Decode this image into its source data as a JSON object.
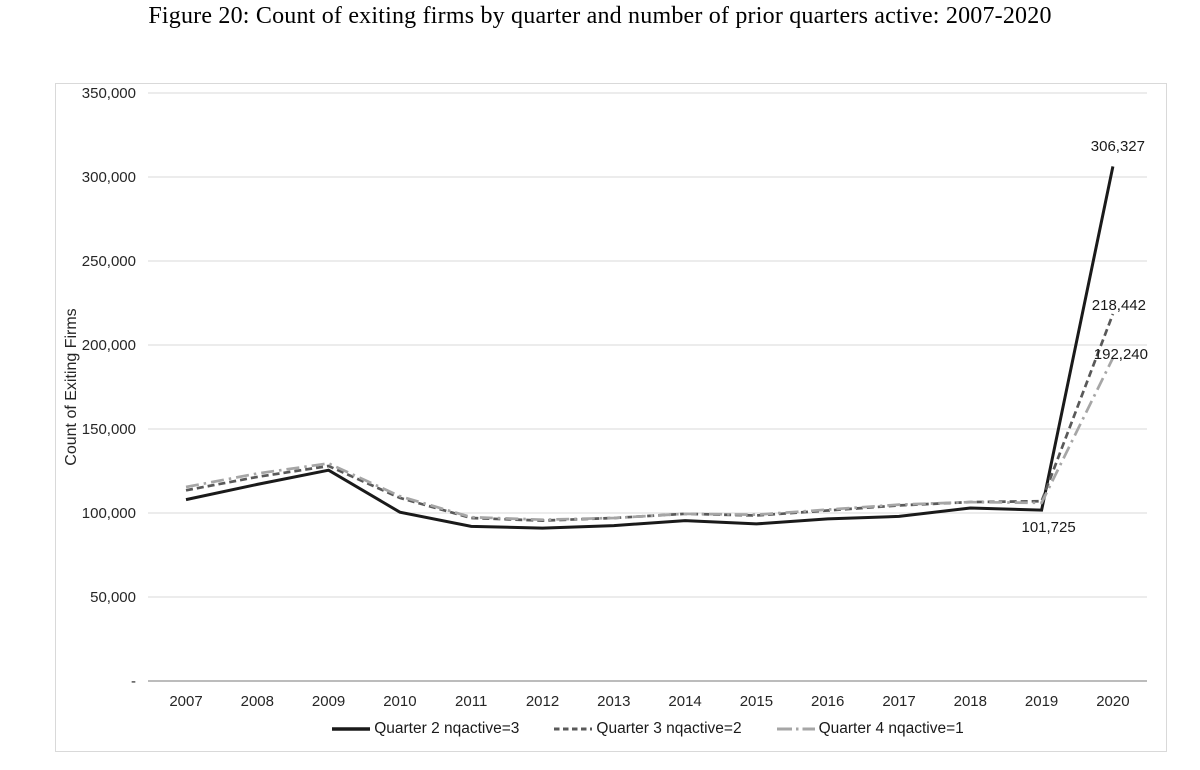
{
  "chart_data": {
    "type": "line",
    "title": "Figure 20: Count of exiting firms by quarter and number of prior quarters active: 2007-2020",
    "ylabel": "Count of Exiting Firms",
    "xlabel": "",
    "categories": [
      "2007",
      "2008",
      "2009",
      "2010",
      "2011",
      "2012",
      "2013",
      "2014",
      "2015",
      "2016",
      "2017",
      "2018",
      "2019",
      "2020"
    ],
    "ylim": [
      0,
      350000
    ],
    "ytick_interval": 50000,
    "yticks": [
      {
        "value": 0,
        "label": "-"
      },
      {
        "value": 50000,
        "label": "50,000"
      },
      {
        "value": 100000,
        "label": "100,000"
      },
      {
        "value": 150000,
        "label": "150,000"
      },
      {
        "value": 200000,
        "label": "200,000"
      },
      {
        "value": 250000,
        "label": "250,000"
      },
      {
        "value": 300000,
        "label": "300,000"
      },
      {
        "value": 350000,
        "label": "350,000"
      }
    ],
    "grid": "horizontal",
    "legend_position": "bottom",
    "series": [
      {
        "name": "Quarter 2 nqactive=3",
        "line_style": "solid",
        "color": "#1a1a1a",
        "values": [
          108000,
          117000,
          125500,
          100500,
          92000,
          91000,
          92500,
          95500,
          93500,
          96500,
          98000,
          103000,
          101725,
          306327
        ]
      },
      {
        "name": "Quarter 3 nqactive=2",
        "line_style": "dashed",
        "color": "#595959",
        "values": [
          113500,
          121500,
          128000,
          109000,
          97000,
          95500,
          97000,
          99500,
          98500,
          101500,
          104500,
          106500,
          107000,
          218442
        ]
      },
      {
        "name": "Quarter 4 nqactive=1",
        "line_style": "dash-dot",
        "color": "#a6a6a6",
        "values": [
          115500,
          123500,
          129500,
          110000,
          97500,
          96000,
          97000,
          99500,
          99000,
          102000,
          105000,
          106500,
          106000,
          192240
        ]
      }
    ],
    "annotations": [
      {
        "text": "306,327",
        "series": 0,
        "point_index": 13
      },
      {
        "text": "218,442",
        "series": 1,
        "point_index": 13
      },
      {
        "text": "192,240",
        "series": 2,
        "point_index": 13
      },
      {
        "text": "101,725",
        "series": 0,
        "point_index": 12
      }
    ],
    "colors": {
      "gridline": "#d9d9d9",
      "axis_line": "#a6a6a6",
      "tick_text": "#262626",
      "plot_border": "#d9d9d9"
    }
  }
}
